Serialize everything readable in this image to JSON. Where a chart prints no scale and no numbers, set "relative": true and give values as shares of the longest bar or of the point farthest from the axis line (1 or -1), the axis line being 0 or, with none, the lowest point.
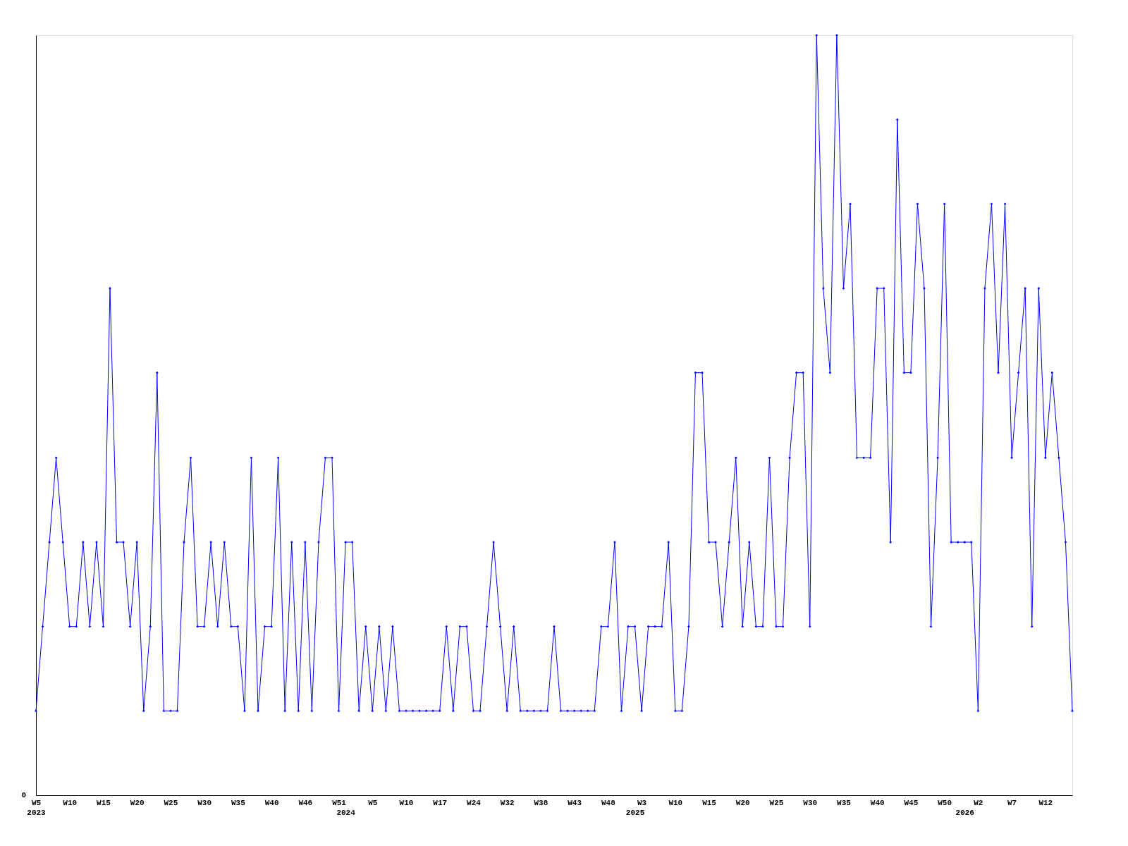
{
  "chart_data": {
    "type": "line",
    "relative": true,
    "grid": false,
    "marker": "diamond",
    "line_style": "solid",
    "categories": [
      "W5\n2023",
      null,
      null,
      null,
      null,
      "W10",
      null,
      null,
      null,
      null,
      "W15",
      null,
      null,
      null,
      null,
      "W20",
      null,
      null,
      null,
      null,
      "W25",
      null,
      null,
      null,
      null,
      "W30",
      null,
      null,
      null,
      null,
      "W35",
      null,
      null,
      null,
      null,
      "W40",
      null,
      null,
      null,
      null,
      "W46",
      null,
      null,
      null,
      null,
      "W51",
      "\n2024",
      null,
      null,
      null,
      "W5",
      null,
      null,
      null,
      null,
      "W10",
      null,
      null,
      null,
      null,
      "W17",
      null,
      null,
      null,
      null,
      "W24",
      null,
      null,
      null,
      null,
      "W32",
      null,
      null,
      null,
      null,
      "W38",
      null,
      null,
      null,
      null,
      "W43",
      null,
      null,
      null,
      null,
      "W48",
      null,
      null,
      null,
      "\n2025",
      "W3",
      null,
      null,
      null,
      null,
      "W10",
      null,
      null,
      null,
      null,
      "W15",
      null,
      null,
      null,
      null,
      "W20",
      null,
      null,
      null,
      null,
      "W25",
      null,
      null,
      null,
      null,
      "W30",
      null,
      null,
      null,
      null,
      "W35",
      null,
      null,
      null,
      null,
      "W40",
      null,
      null,
      null,
      null,
      "W45",
      null,
      null,
      null,
      null,
      "W50",
      null,
      null,
      "\n2026",
      null,
      "W2",
      null,
      null,
      null,
      null,
      "W7",
      null,
      null,
      null,
      null,
      "W12",
      null,
      null,
      null,
      null
    ],
    "series": [
      {
        "color": "#0000ff",
        "values": [
          0.111,
          0.222,
          0.333,
          0.444,
          0.333,
          0.222,
          0.222,
          0.333,
          0.222,
          0.333,
          0.222,
          0.667,
          0.333,
          0.333,
          0.222,
          0.333,
          0.111,
          0.222,
          0.556,
          0.111,
          0.111,
          0.111,
          0.333,
          0.444,
          0.222,
          0.222,
          0.333,
          0.222,
          0.333,
          0.222,
          0.222,
          0.111,
          0.444,
          0.111,
          0.222,
          0.222,
          0.444,
          0.111,
          0.333,
          0.111,
          0.333,
          0.111,
          0.333,
          0.444,
          0.444,
          0.111,
          0.333,
          0.333,
          0.111,
          0.222,
          0.111,
          0.222,
          0.111,
          0.222,
          0.111,
          0.111,
          0.111,
          0.111,
          0.111,
          0.111,
          0.111,
          0.222,
          0.111,
          0.222,
          0.222,
          0.111,
          0.111,
          0.222,
          0.333,
          0.222,
          0.111,
          0.222,
          0.111,
          0.111,
          0.111,
          0.111,
          0.111,
          0.222,
          0.111,
          0.111,
          0.111,
          0.111,
          0.111,
          0.111,
          0.222,
          0.222,
          0.333,
          0.111,
          0.222,
          0.222,
          0.111,
          0.222,
          0.222,
          0.222,
          0.333,
          0.111,
          0.111,
          0.222,
          0.556,
          0.556,
          0.333,
          0.333,
          0.222,
          0.333,
          0.444,
          0.222,
          0.333,
          0.222,
          0.222,
          0.444,
          0.222,
          0.222,
          0.444,
          0.556,
          0.556,
          0.222,
          1,
          0.667,
          0.556,
          1,
          0.667,
          0.778,
          0.444,
          0.444,
          0.444,
          0.667,
          0.667,
          0.333,
          0.889,
          0.556,
          0.556,
          0.778,
          0.667,
          0.222,
          0.444,
          0.778,
          0.333,
          0.333,
          0.333,
          0.333,
          0.111,
          0.667,
          0.778,
          0.556,
          0.778,
          0.444,
          0.556,
          0.667,
          0.222,
          0.667,
          0.444,
          0.556,
          0.444,
          0.333,
          0.111
        ]
      }
    ],
    "annotations": [
      "0"
    ]
  }
}
